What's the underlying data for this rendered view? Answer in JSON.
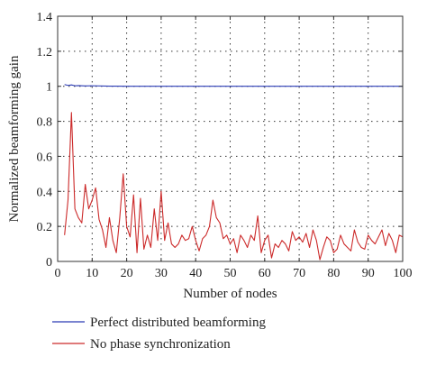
{
  "chart_data": {
    "type": "line",
    "xlabel": "Number of nodes",
    "ylabel": "Normalized beamforming gain",
    "xlim": [
      0,
      100
    ],
    "ylim": [
      0,
      1.4
    ],
    "xticks": [
      0,
      10,
      20,
      30,
      40,
      50,
      60,
      70,
      80,
      90,
      100
    ],
    "yticks": [
      0,
      0.2,
      0.4,
      0.6,
      0.8,
      1.0,
      1.2,
      1.4
    ],
    "xtick_labels": [
      "0",
      "10",
      "20",
      "30",
      "40",
      "50",
      "60",
      "70",
      "80",
      "90",
      "100"
    ],
    "ytick_labels": [
      "0",
      "0.2",
      "0.4",
      "0.6",
      "0.8",
      "1",
      "1.2",
      "1.4"
    ],
    "grid": true,
    "legend_position": "bottom",
    "series": [
      {
        "name": "Perfect distributed beamforming",
        "color": "#2b3bb5",
        "x": [
          2,
          3,
          4,
          5,
          6,
          8,
          10,
          15,
          20,
          30,
          40,
          50,
          60,
          70,
          80,
          90,
          100
        ],
        "y": [
          1.01,
          1.005,
          1.008,
          1.003,
          1.004,
          1.002,
          1.003,
          1.001,
          1.0,
          1.0,
          1.0,
          1.0,
          1.0,
          1.0,
          1.0,
          1.0,
          1.0
        ]
      },
      {
        "name": "No phase synchronization",
        "color": "#cc2a2a",
        "x": [
          2,
          3,
          4,
          5,
          6,
          7,
          8,
          9,
          10,
          11,
          12,
          13,
          14,
          15,
          16,
          17,
          18,
          19,
          20,
          21,
          22,
          23,
          24,
          25,
          26,
          27,
          28,
          29,
          30,
          31,
          32,
          33,
          34,
          35,
          36,
          37,
          38,
          39,
          40,
          41,
          42,
          43,
          44,
          45,
          46,
          47,
          48,
          49,
          50,
          51,
          52,
          53,
          54,
          55,
          56,
          57,
          58,
          59,
          60,
          61,
          62,
          63,
          64,
          65,
          66,
          67,
          68,
          69,
          70,
          71,
          72,
          73,
          74,
          75,
          76,
          77,
          78,
          79,
          80,
          81,
          82,
          83,
          84,
          85,
          86,
          87,
          88,
          89,
          90,
          91,
          92,
          93,
          94,
          95,
          96,
          97,
          98,
          99,
          100
        ],
        "y": [
          0.15,
          0.35,
          0.85,
          0.3,
          0.25,
          0.22,
          0.44,
          0.3,
          0.35,
          0.42,
          0.24,
          0.18,
          0.08,
          0.25,
          0.12,
          0.05,
          0.25,
          0.5,
          0.2,
          0.14,
          0.38,
          0.05,
          0.36,
          0.07,
          0.15,
          0.08,
          0.3,
          0.12,
          0.4,
          0.12,
          0.22,
          0.1,
          0.08,
          0.1,
          0.15,
          0.12,
          0.13,
          0.2,
          0.12,
          0.06,
          0.13,
          0.15,
          0.2,
          0.35,
          0.25,
          0.22,
          0.13,
          0.15,
          0.1,
          0.13,
          0.05,
          0.15,
          0.12,
          0.08,
          0.15,
          0.12,
          0.26,
          0.05,
          0.12,
          0.15,
          0.02,
          0.1,
          0.08,
          0.12,
          0.1,
          0.06,
          0.17,
          0.12,
          0.14,
          0.11,
          0.16,
          0.08,
          0.18,
          0.12,
          0.01,
          0.08,
          0.14,
          0.12,
          0.05,
          0.07,
          0.15,
          0.1,
          0.08,
          0.06,
          0.18,
          0.11,
          0.08,
          0.07,
          0.15,
          0.12,
          0.1,
          0.14,
          0.18,
          0.09,
          0.16,
          0.12,
          0.05,
          0.15,
          0.14
        ]
      }
    ]
  }
}
